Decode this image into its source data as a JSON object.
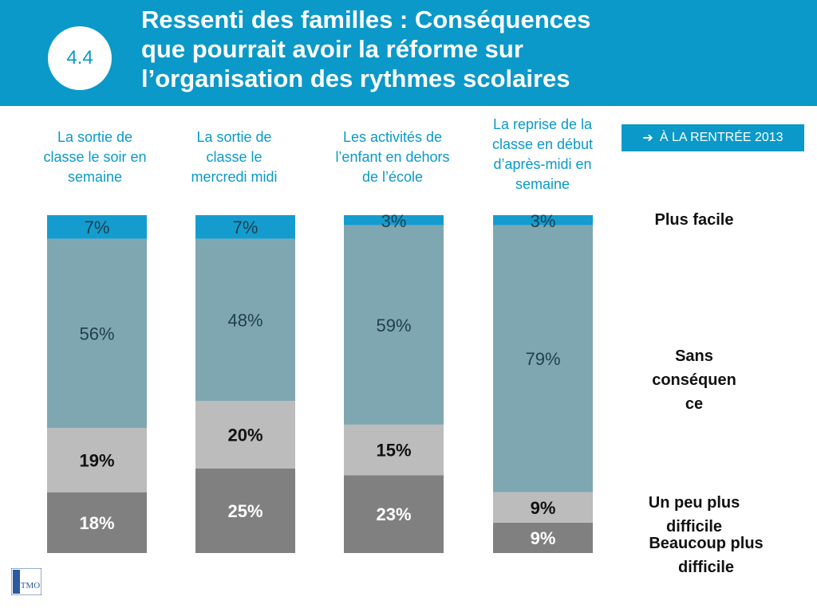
{
  "header": {
    "badge": "4.4",
    "title": "Ressenti des familles : Conséquences\nque pourrait avoir la réforme sur\nl’organisation des rythmes scolaires"
  },
  "rentree": {
    "icon": "arrow-right-icon",
    "label": "À LA RENTRÉE 2013"
  },
  "logo_text": "TMO",
  "colors": {
    "plus_facile": "#159ccf",
    "sans_consequence": "#7fa7b2",
    "un_peu_plus_difficile": "#bcbcbc",
    "beaucoup_plus_difficile": "#808080",
    "header": "#0a99c9"
  },
  "legend": {
    "plus_facile": "Plus facile",
    "sans_consequence": "Sans\nconséquen\nce",
    "un_peu_plus_difficile": "Un peu plus\ndifficile",
    "beaucoup_plus_difficile": "Beaucoup plus\ndifficile"
  },
  "chart_data": {
    "type": "bar",
    "stacked": "100%",
    "categories": [
      "La sortie de\nclasse le soir en\nsemaine",
      "La sortie de\nclasse le\nmercredi midi",
      "Les activités de\nl’enfant en dehors\nde l’école",
      "La reprise de la\nclasse en début\nd’après-midi en\nsemaine"
    ],
    "series": [
      {
        "name": "Beaucoup plus difficile",
        "values": [
          18,
          25,
          23,
          9
        ],
        "labels": [
          "18%",
          "25%",
          "23%",
          "9%"
        ]
      },
      {
        "name": "Un peu plus difficile",
        "values": [
          19,
          20,
          15,
          9
        ],
        "labels": [
          "19%",
          "20%",
          "15%",
          "9%"
        ]
      },
      {
        "name": "Sans conséquence",
        "values": [
          56,
          48,
          59,
          79
        ],
        "labels": [
          "56%",
          "48%",
          "59%",
          "79%"
        ]
      },
      {
        "name": "Plus facile",
        "values": [
          7,
          7,
          3,
          3
        ],
        "labels": [
          "7%",
          "7%",
          "3%",
          "3%"
        ]
      }
    ]
  }
}
